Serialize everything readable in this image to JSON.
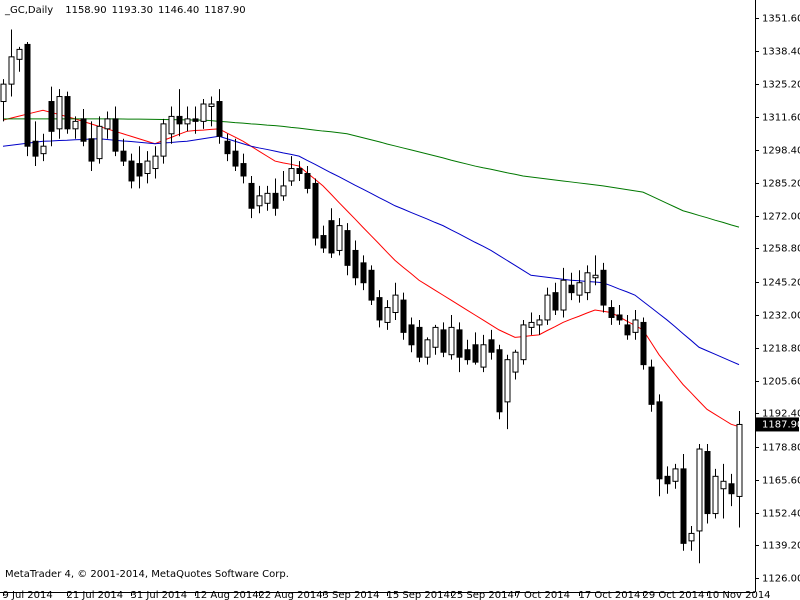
{
  "chart_data": {
    "type": "candlestick",
    "title": "_GC,Daily",
    "title_values": [
      "1158.90",
      "1193.30",
      "1146.40",
      "1187.90"
    ],
    "footer": "MetaTrader 4, © 2001-2014, MetaQuotes Software Corp.",
    "categories": [
      "9 Jul 2014",
      null,
      null,
      null,
      null,
      null,
      null,
      null,
      "21 Jul 2014",
      null,
      null,
      null,
      null,
      null,
      null,
      null,
      "31 Jul 2014",
      null,
      null,
      null,
      null,
      null,
      null,
      null,
      "12 Aug 2014",
      null,
      null,
      null,
      null,
      null,
      null,
      null,
      "22 Aug 2014",
      null,
      null,
      null,
      null,
      null,
      null,
      null,
      "3 Sep 2014",
      null,
      null,
      null,
      null,
      null,
      null,
      null,
      "15 Sep 2014",
      null,
      null,
      null,
      null,
      null,
      null,
      null,
      "25 Sep 2014",
      null,
      null,
      null,
      null,
      null,
      null,
      null,
      "7 Oct 2014",
      null,
      null,
      null,
      null,
      null,
      null,
      null,
      "17 Oct 2014",
      null,
      null,
      null,
      null,
      null,
      null,
      null,
      "29 Oct 2014",
      null,
      null,
      null,
      null,
      null,
      null,
      null,
      "10 Nov 2014",
      null,
      null,
      null,
      null
    ],
    "open": [
      1318,
      1325,
      1335,
      1341,
      1302,
      1297,
      1318,
      1307,
      1320,
      1307,
      1311,
      1303,
      1295,
      1307,
      1311,
      1298,
      1294,
      1293,
      1289,
      1291,
      1296,
      1305,
      1312,
      1309,
      1311,
      1310,
      1316,
      1318,
      1302,
      1298,
      1293,
      1285,
      1276,
      1277,
      1281,
      1280,
      1286,
      1291,
      1289,
      1285,
      1264,
      1270,
      1258,
      1266,
      1258,
      1253,
      1250,
      1239,
      1229,
      1233,
      1238,
      1228,
      1227,
      1215,
      1219,
      1226,
      1216,
      1226,
      1218,
      1220,
      1211,
      1222,
      1218,
      1197,
      1209,
      1214,
      1227,
      1228,
      1230,
      1241,
      1234,
      1244,
      1240,
      1241,
      1247,
      1250,
      1235,
      1232,
      1228,
      1225,
      1229,
      1211,
      1197,
      1167,
      1165,
      1170,
      1141,
      1145,
      1177,
      1152,
      1162,
      1164,
      1158.9
    ],
    "high": [
      1327,
      1347,
      1340,
      1342,
      1310,
      1305,
      1324,
      1323,
      1322,
      1312,
      1315,
      1310,
      1312,
      1314,
      1316,
      1303,
      1297,
      1300,
      1298,
      1300,
      1311,
      1316,
      1323,
      1316,
      1316,
      1319,
      1320,
      1323,
      1305,
      1303,
      1297,
      1288,
      1284,
      1284,
      1287,
      1290,
      1296,
      1294,
      1292,
      1287,
      1268,
      1275,
      1271,
      1269,
      1262,
      1256,
      1252,
      1242,
      1238,
      1245,
      1241,
      1231,
      1230,
      1223,
      1228,
      1229,
      1232,
      1229,
      1222,
      1225,
      1224,
      1226,
      1220,
      1216,
      1218,
      1230,
      1233,
      1232,
      1243,
      1245,
      1251,
      1249,
      1250,
      1252,
      1256,
      1253,
      1238,
      1236,
      1232,
      1234,
      1231,
      1214,
      1200,
      1171,
      1172,
      1176,
      1147,
      1180,
      1180,
      1170,
      1172,
      1168,
      1193.3
    ],
    "low": [
      1310,
      1320,
      1330,
      1296,
      1292,
      1294,
      1300,
      1303,
      1305,
      1303,
      1300,
      1290,
      1293,
      1303,
      1296,
      1292,
      1283,
      1283,
      1285,
      1287,
      1293,
      1301,
      1304,
      1306,
      1305,
      1307,
      1308,
      1301,
      1294,
      1290,
      1285,
      1271,
      1273,
      1274,
      1272,
      1278,
      1284,
      1286,
      1281,
      1260,
      1257,
      1255,
      1256,
      1248,
      1244,
      1242,
      1236,
      1227,
      1226,
      1230,
      1222,
      1217,
      1213,
      1212,
      1216,
      1215,
      1214,
      1209,
      1212,
      1212,
      1209,
      1214,
      1190,
      1186,
      1206,
      1212,
      1224,
      1224,
      1228,
      1232,
      1231,
      1238,
      1237,
      1238,
      1244,
      1233,
      1228,
      1228,
      1222,
      1222,
      1210,
      1193,
      1159,
      1160,
      1162,
      1137,
      1137,
      1132,
      1148,
      1150,
      1150,
      1155,
      1146.4
    ],
    "close": [
      1325,
      1336,
      1339,
      1300,
      1296,
      1300,
      1306,
      1320,
      1307,
      1310,
      1302,
      1294,
      1308,
      1311,
      1298,
      1294,
      1286,
      1288,
      1294,
      1296,
      1309,
      1312,
      1309,
      1311,
      1310,
      1317,
      1317,
      1304,
      1297,
      1292,
      1288,
      1275,
      1280,
      1281,
      1275,
      1284,
      1291,
      1289,
      1283,
      1263,
      1259,
      1257,
      1268,
      1252,
      1247,
      1245,
      1238,
      1230,
      1235,
      1240,
      1225,
      1220,
      1215,
      1222,
      1227,
      1217,
      1227,
      1215,
      1214,
      1213,
      1220,
      1217,
      1193,
      1214,
      1217,
      1228,
      1229,
      1230,
      1240,
      1234,
      1246,
      1241,
      1245,
      1249,
      1248,
      1236,
      1231,
      1230,
      1224,
      1230,
      1212,
      1196,
      1166,
      1164,
      1170,
      1140,
      1144,
      1178,
      1152,
      1167,
      1165,
      1160,
      1187.9
    ],
    "lines": [
      {
        "color": "#ff0000",
        "values": [
          1310.5,
          1311.3,
          1312.1,
          1312.9,
          1313.7,
          1314.5,
          1313.6,
          1312.8,
          1311.9,
          1311,
          1310,
          1309,
          1308,
          1307,
          1306,
          1305,
          1304,
          1303,
          1302,
          1301,
          1302.3,
          1303.5,
          1304.8,
          1306,
          1306.3,
          1306.5,
          1306.8,
          1307,
          1305.3,
          1303.7,
          1302,
          1300,
          1298,
          1296,
          1294,
          1293.3,
          1292.7,
          1292,
          1289.3,
          1286.7,
          1284,
          1280.7,
          1277.3,
          1274,
          1270.7,
          1267.3,
          1264,
          1260.7,
          1257.3,
          1254,
          1251.3,
          1248.7,
          1246,
          1244,
          1242,
          1240,
          1238,
          1236,
          1234,
          1232,
          1230,
          1228,
          1226,
          1224.5,
          1223,
          1223.3,
          1223.7,
          1224,
          1225.7,
          1227.3,
          1229,
          1230.3,
          1231.5,
          1232.8,
          1234,
          1233.5,
          1233,
          1231.3,
          1229.5,
          1227.8,
          1226,
          1221,
          1216,
          1212,
          1208,
          1204,
          1200.7,
          1197.3,
          1194,
          1192,
          1190,
          1188,
          1187
        ]
      },
      {
        "color": "#0000c8",
        "values": [
          1300,
          1300.4,
          1300.8,
          1301.2,
          1301.6,
          1302,
          1302.1,
          1302.3,
          1302.4,
          1302.6,
          1302.7,
          1302.9,
          1303,
          1302.7,
          1302.4,
          1302.1,
          1301.9,
          1301.6,
          1301.3,
          1301,
          1301.3,
          1301.5,
          1301.8,
          1302,
          1302.5,
          1303,
          1303.5,
          1304,
          1303,
          1302,
          1301,
          1300,
          1299.3,
          1298.7,
          1298,
          1297.3,
          1296.7,
          1296,
          1294.3,
          1292.7,
          1291,
          1289.3,
          1287.7,
          1286,
          1284.3,
          1282.7,
          1281,
          1279.3,
          1277.7,
          1276,
          1274.7,
          1273.3,
          1272,
          1270.7,
          1269.3,
          1268,
          1266.3,
          1264.7,
          1263,
          1261.3,
          1259.7,
          1258,
          1256,
          1254,
          1252,
          1250,
          1248,
          1247.6,
          1247.2,
          1246.8,
          1246.4,
          1246,
          1245.8,
          1245.5,
          1245.3,
          1245,
          1243.8,
          1242.5,
          1241.3,
          1240,
          1237.5,
          1235,
          1232.5,
          1230,
          1227.3,
          1224.5,
          1221.8,
          1219,
          1217.6,
          1216.2,
          1214.8,
          1213.4,
          1212
        ]
      },
      {
        "color": "#007800",
        "values": [
          1311,
          1311,
          1311,
          1311,
          1311,
          1311,
          1311,
          1311,
          1311,
          1311,
          1311,
          1311,
          1311,
          1311,
          1311,
          1310.95,
          1310.9,
          1310.9,
          1310.85,
          1310.8,
          1310.75,
          1310.7,
          1310.65,
          1310.6,
          1310.55,
          1310.5,
          1310.3,
          1310,
          1309.8,
          1309.5,
          1309.3,
          1309,
          1308.8,
          1308.5,
          1308.3,
          1308,
          1307.6,
          1307.3,
          1306.9,
          1306.5,
          1306.1,
          1305.8,
          1305.4,
          1305,
          1304.2,
          1303.4,
          1302.6,
          1301.8,
          1300.9,
          1300.1,
          1299.3,
          1298.5,
          1297.7,
          1296.9,
          1296.1,
          1295.3,
          1294.4,
          1293.6,
          1292.8,
          1292,
          1291.3,
          1290.7,
          1290,
          1289.3,
          1288.7,
          1288,
          1287.6,
          1287.2,
          1286.8,
          1286.4,
          1286,
          1285.6,
          1285.2,
          1284.8,
          1284.4,
          1284,
          1283.5,
          1283,
          1282.5,
          1282,
          1281.5,
          1280,
          1278.5,
          1277,
          1275.5,
          1274,
          1273.1,
          1272.1,
          1271.2,
          1270.2,
          1269.3,
          1268.3,
          1267.4
        ]
      }
    ],
    "price_tag": {
      "value": 1187.9,
      "label": "1187.90"
    },
    "ylim": [
      1120.4,
      1358.9
    ],
    "yticks": [
      {
        "value": 1351.6,
        "label": "1351.60"
      },
      {
        "value": 1338.4,
        "label": "1338.40"
      },
      {
        "value": 1325.2,
        "label": "1325.20"
      },
      {
        "value": 1311.6,
        "label": "1311.60"
      },
      {
        "value": 1298.4,
        "label": "1298.40"
      },
      {
        "value": 1285.2,
        "label": "1285.20"
      },
      {
        "value": 1272,
        "label": "1272.00"
      },
      {
        "value": 1258.8,
        "label": "1258.80"
      },
      {
        "value": 1245.2,
        "label": "1245.20"
      },
      {
        "value": 1232,
        "label": "1232.00"
      },
      {
        "value": 1218.8,
        "label": "1218.80"
      },
      {
        "value": 1205.6,
        "label": "1205.60"
      },
      {
        "value": 1192.4,
        "label": "1192.40"
      },
      {
        "value": 1178.8,
        "label": "1178.80"
      },
      {
        "value": 1165.6,
        "label": "1165.60"
      },
      {
        "value": 1152.4,
        "label": "1152.40"
      },
      {
        "value": 1139.2,
        "label": "1139.20"
      },
      {
        "value": 1126,
        "label": "1126.00"
      }
    ],
    "grid": false,
    "up_color": "#ffffff",
    "down_color": "#000000"
  }
}
